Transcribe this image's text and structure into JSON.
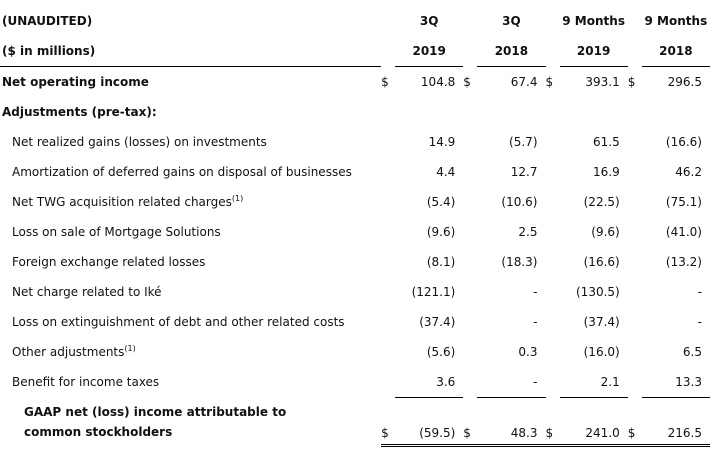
{
  "header": {
    "unaudited": "(UNAUDITED)",
    "units": "($ in millions)",
    "periods": [
      "3Q",
      "3Q",
      "9 Months",
      "9 Months"
    ],
    "years": [
      "2019",
      "2018",
      "2019",
      "2018"
    ]
  },
  "rows": [
    {
      "name": "net-operating-income",
      "label": "Net operating income",
      "sup": "",
      "style": "bold",
      "currency": [
        "$",
        "$",
        "$",
        "$"
      ],
      "values": [
        "104.8",
        "67.4",
        "393.1",
        "296.5"
      ]
    },
    {
      "name": "adjustments-heading",
      "label": "Adjustments (pre-tax):",
      "sup": "",
      "style": "bold",
      "currency": [
        "",
        "",
        "",
        ""
      ],
      "values": [
        "",
        "",
        "",
        ""
      ]
    },
    {
      "name": "net-realized-gains",
      "label": "Net realized gains (losses) on investments",
      "sup": "",
      "style": "indent",
      "currency": [
        "",
        "",
        "",
        ""
      ],
      "values": [
        "14.9",
        "(5.7)",
        "61.5",
        "(16.6)"
      ]
    },
    {
      "name": "amortization-deferred-gains",
      "label": "Amortization of deferred gains on disposal of businesses",
      "sup": "",
      "style": "indent",
      "currency": [
        "",
        "",
        "",
        ""
      ],
      "values": [
        "4.4",
        "12.7",
        "16.9",
        "46.2"
      ]
    },
    {
      "name": "twg-acquisition-charges",
      "label": "Net TWG acquisition related charges",
      "sup": "(1)",
      "style": "indent",
      "currency": [
        "",
        "",
        "",
        ""
      ],
      "values": [
        "(5.4)",
        "(10.6)",
        "(22.5)",
        "(75.1)"
      ]
    },
    {
      "name": "loss-sale-mortgage-solutions",
      "label": "Loss on sale of Mortgage Solutions",
      "sup": "",
      "style": "indent",
      "currency": [
        "",
        "",
        "",
        ""
      ],
      "values": [
        "(9.6)",
        "2.5",
        "(9.6)",
        "(41.0)"
      ]
    },
    {
      "name": "foreign-exchange-losses",
      "label": "Foreign exchange related losses",
      "sup": "",
      "style": "indent",
      "currency": [
        "",
        "",
        "",
        ""
      ],
      "values": [
        "(8.1)",
        "(18.3)",
        "(16.6)",
        "(13.2)"
      ]
    },
    {
      "name": "net-charge-ike",
      "label": "Net charge related to Iké",
      "sup": "",
      "style": "indent",
      "currency": [
        "",
        "",
        "",
        ""
      ],
      "values": [
        "(121.1)",
        "-",
        "(130.5)",
        "-"
      ]
    },
    {
      "name": "loss-extinguishment-debt",
      "label": "Loss on extinguishment of debt and other related costs",
      "sup": "",
      "style": "indent",
      "currency": [
        "",
        "",
        "",
        ""
      ],
      "values": [
        "(37.4)",
        "-",
        "(37.4)",
        "-"
      ]
    },
    {
      "name": "other-adjustments",
      "label": "Other adjustments",
      "sup": "(1)",
      "style": "indent",
      "currency": [
        "",
        "",
        "",
        ""
      ],
      "values": [
        "(5.6)",
        "0.3",
        "(16.0)",
        "6.5"
      ]
    },
    {
      "name": "benefit-income-taxes",
      "label": "Benefit for income taxes",
      "sup": "",
      "style": "indent pre-total",
      "currency": [
        "",
        "",
        "",
        ""
      ],
      "values": [
        "3.6",
        "-",
        "2.1",
        "13.3"
      ]
    },
    {
      "name": "gaap-net-income",
      "label": "GAAP net (loss) income attributable to common stockholders",
      "sup": "",
      "style": "bold indent2 total",
      "currency": [
        "$",
        "$",
        "$",
        "$"
      ],
      "values": [
        "(59.5)",
        "48.3",
        "241.0",
        "216.5"
      ]
    }
  ]
}
